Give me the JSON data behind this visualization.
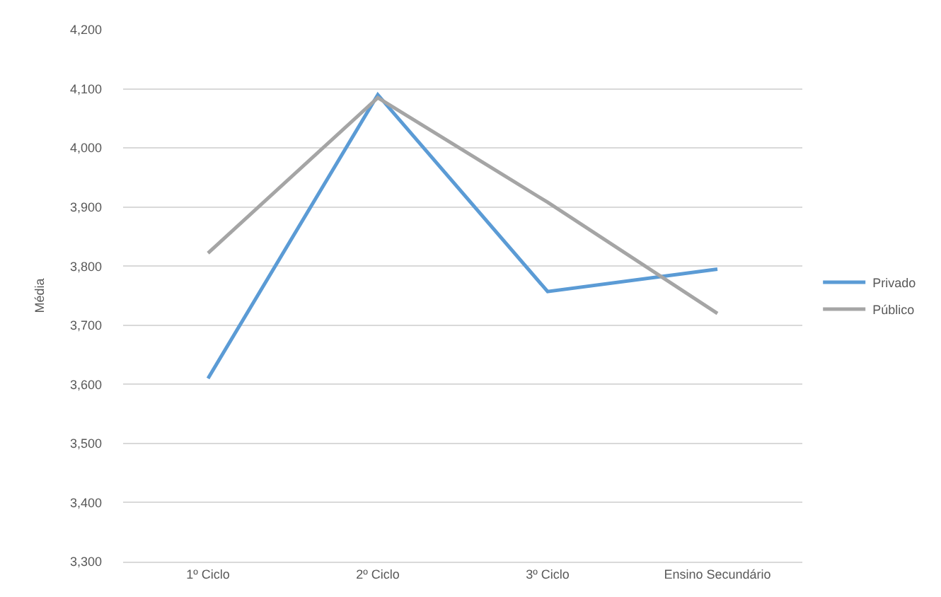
{
  "chart_data": {
    "type": "line",
    "ylabel": "Média",
    "categories": [
      "1º Ciclo",
      "2º Ciclo",
      "3º Ciclo",
      "Ensino Secundário"
    ],
    "series": [
      {
        "name": "Privado",
        "color": "#5b9bd5",
        "values": [
          3610,
          4090,
          3757,
          3795
        ]
      },
      {
        "name": "Público",
        "color": "#a5a5a5",
        "values": [
          3822,
          4085,
          3908,
          3720
        ]
      }
    ],
    "ylim": [
      3300,
      4200
    ],
    "yticks": [
      {
        "value": 3300,
        "label": "3,300"
      },
      {
        "value": 3400,
        "label": "3,400"
      },
      {
        "value": 3500,
        "label": "3,500"
      },
      {
        "value": 3600,
        "label": "3,600"
      },
      {
        "value": 3700,
        "label": "3,700"
      },
      {
        "value": 3800,
        "label": "3,800"
      },
      {
        "value": 3900,
        "label": "3,900"
      },
      {
        "value": 4000,
        "label": "4,000"
      },
      {
        "value": 4100,
        "label": "4,100"
      },
      {
        "value": 4200,
        "label": "4,200"
      }
    ],
    "grid": "y",
    "legend": "right",
    "marker": "none",
    "line_style": "solid"
  }
}
